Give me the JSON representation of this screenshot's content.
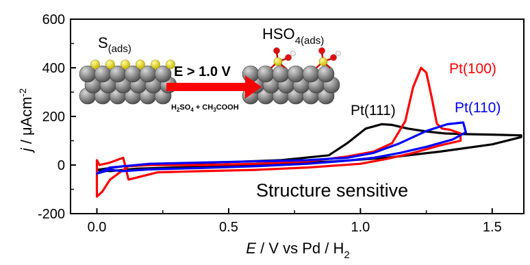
{
  "chart_data": {
    "type": "line",
    "xlabel_italic": "E",
    "xlabel_rest": " / V vs Pd / H",
    "xlabel_sub": "2",
    "ylabel_italic": "j",
    "ylabel_rest": " / μAcm",
    "ylabel_sup": "-2",
    "xlim": [
      -0.1,
      1.62
    ],
    "ylim": [
      -200,
      600
    ],
    "xticks": [
      0.0,
      0.5,
      1.0,
      1.5
    ],
    "xtick_labels": [
      "0.0",
      "0.5",
      "1.0",
      "1.5"
    ],
    "yticks": [
      -200,
      0,
      200,
      400,
      600
    ],
    "ytick_labels": [
      "-200",
      "0",
      "200",
      "400",
      "600"
    ],
    "grid": false,
    "series": [
      {
        "name": "Pt(111)",
        "color": "#000000",
        "x": [
          0.0,
          0.1,
          0.3,
          0.5,
          0.7,
          0.88,
          0.95,
          1.02,
          1.08,
          1.12,
          1.18,
          1.25,
          1.32,
          1.4,
          1.5,
          1.61,
          1.61,
          1.5,
          1.3,
          1.1,
          0.9,
          0.7,
          0.5,
          0.3,
          0.15,
          0.05,
          0.0
        ],
        "y": [
          -20,
          -5,
          5,
          12,
          20,
          40,
          90,
          150,
          168,
          165,
          150,
          138,
          130,
          127,
          125,
          122,
          115,
          85,
          55,
          30,
          15,
          5,
          -5,
          -10,
          -15,
          -25,
          -20
        ]
      },
      {
        "name": "Pt(100)",
        "color": "#ff0000",
        "x": [
          0.0,
          0.02,
          0.05,
          0.1,
          0.12,
          0.2,
          0.4,
          0.6,
          0.8,
          0.95,
          1.05,
          1.12,
          1.17,
          1.2,
          1.23,
          1.25,
          1.27,
          1.29,
          1.31,
          1.34,
          1.38,
          1.38,
          1.3,
          1.2,
          1.1,
          1.0,
          0.8,
          0.6,
          0.4,
          0.23,
          0.12,
          0.1,
          0.05,
          0.01,
          0.0,
          0.0
        ],
        "y": [
          -130,
          -110,
          -60,
          -20,
          -5,
          0,
          0,
          5,
          15,
          35,
          55,
          90,
          180,
          320,
          400,
          380,
          280,
          170,
          150,
          145,
          130,
          100,
          80,
          50,
          25,
          5,
          -10,
          -20,
          -25,
          -30,
          -60,
          30,
          10,
          0,
          20,
          -130
        ]
      },
      {
        "name": "Pt(110)",
        "color": "#0000ff",
        "x": [
          0.0,
          0.05,
          0.2,
          0.4,
          0.6,
          0.8,
          0.95,
          1.05,
          1.15,
          1.25,
          1.33,
          1.39,
          1.4,
          1.35,
          1.25,
          1.15,
          1.05,
          0.95,
          0.8,
          0.6,
          0.4,
          0.2,
          0.1,
          0.05,
          0.0
        ],
        "y": [
          -35,
          -10,
          5,
          10,
          15,
          20,
          30,
          50,
          90,
          140,
          168,
          175,
          135,
          105,
          75,
          50,
          30,
          18,
          5,
          -5,
          -12,
          -18,
          -25,
          -20,
          -35
        ]
      }
    ],
    "annotations": {
      "pt111": "Pt(111)",
      "pt100": "Pt(100)",
      "pt110": "Pt(110)",
      "structure": "Structure sensitive",
      "inset_left_main": "S",
      "inset_left_sub": "(ads)",
      "inset_right_main": "HSO",
      "inset_right_sub": "4(ads)",
      "arrow_label": "E > 1.0 V",
      "reagent_h": "H",
      "reagent_sub2": "2",
      "reagent_so": "SO",
      "reagent_sub4": "4",
      "reagent_rest": " + CH",
      "reagent_sub3": "3",
      "reagent_end": "COOH"
    }
  }
}
